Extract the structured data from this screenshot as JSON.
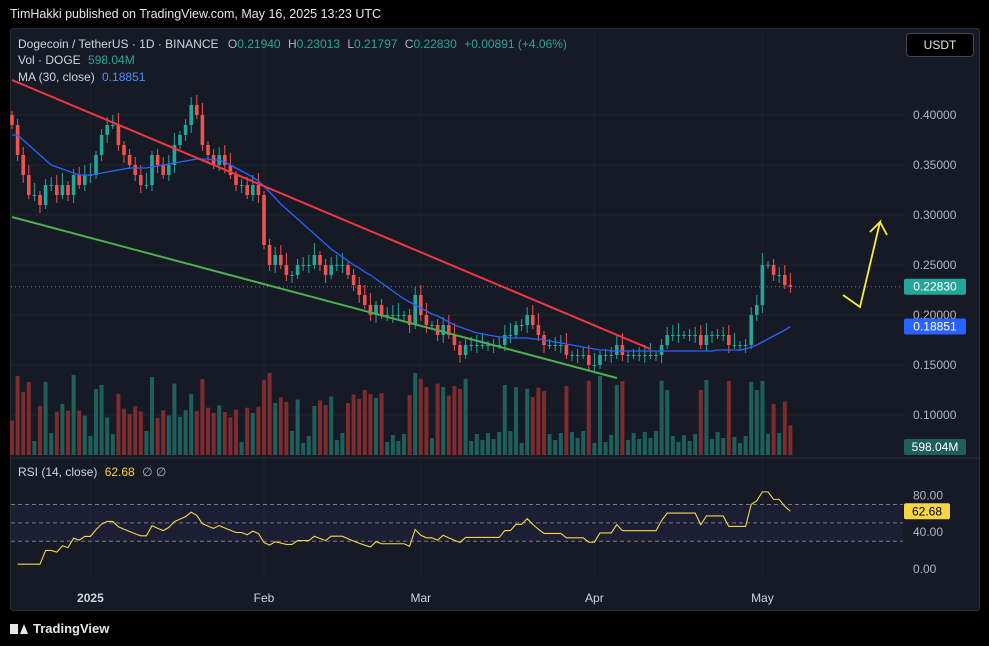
{
  "header": {
    "publisher": "TimHakki published on TradingView.com, May 16, 2025 13:23 UTC"
  },
  "legend": {
    "title": "Dogecoin / TetherUS · 1D · BINANCE",
    "o_label": "O",
    "o_value": "0.21940",
    "h_label": "H",
    "h_value": "0.23013",
    "l_label": "L",
    "l_value": "0.21797",
    "c_label": "C",
    "c_value": "0.22830",
    "change": "+0.00891 (+4.06%)",
    "vol_label": "Vol · DOGE",
    "vol_value": "598.04M",
    "ma_label": "MA (30, close)",
    "ma_value": "0.18851",
    "rsi_label": "RSI (14, close)",
    "rsi_value": "62.68",
    "rsi_glyphs": "∅ ∅"
  },
  "currency_button": "USDT",
  "footer": {
    "brand": "TradingView"
  },
  "colors": {
    "up": "#26a69a",
    "down": "#ef5350",
    "ma": "#2962ff",
    "rsi": "#f7d547",
    "resistance": "#f23645",
    "support": "#4caf50",
    "arrow": "#ffeb3b"
  },
  "chart_data": {
    "type": "candlestick",
    "symbol": "DOGEUSDT",
    "interval": "1D",
    "price_axis": {
      "ticks": [
        "0.40000",
        "0.35000",
        "0.30000",
        "0.25000",
        "0.20000",
        "0.15000",
        "0.10000"
      ],
      "values": [
        0.4,
        0.35,
        0.3,
        0.25,
        0.2,
        0.15,
        0.1
      ],
      "ylim": [
        0.06,
        0.455
      ]
    },
    "time_axis": {
      "ticks": [
        "2025",
        "Feb",
        "Mar",
        "Apr",
        "May"
      ],
      "day_index": [
        14,
        45,
        73,
        104,
        134
      ]
    },
    "last_price": {
      "value": 0.2283,
      "label": "0.22830"
    },
    "ma_last": {
      "value": 0.18851,
      "label": "0.18851"
    },
    "vol_last": {
      "label": "598.04M"
    },
    "closes": [
      0.39,
      0.36,
      0.34,
      0.32,
      0.32,
      0.31,
      0.33,
      0.33,
      0.32,
      0.33,
      0.32,
      0.34,
      0.33,
      0.34,
      0.34,
      0.36,
      0.38,
      0.39,
      0.39,
      0.37,
      0.36,
      0.35,
      0.34,
      0.33,
      0.33,
      0.36,
      0.35,
      0.34,
      0.35,
      0.37,
      0.38,
      0.39,
      0.41,
      0.4,
      0.37,
      0.36,
      0.35,
      0.36,
      0.35,
      0.34,
      0.33,
      0.33,
      0.32,
      0.33,
      0.32,
      0.27,
      0.25,
      0.26,
      0.25,
      0.24,
      0.24,
      0.25,
      0.25,
      0.25,
      0.26,
      0.25,
      0.24,
      0.25,
      0.25,
      0.25,
      0.24,
      0.23,
      0.22,
      0.21,
      0.2,
      0.21,
      0.2,
      0.2,
      0.2,
      0.2,
      0.2,
      0.19,
      0.22,
      0.2,
      0.19,
      0.19,
      0.18,
      0.19,
      0.18,
      0.17,
      0.16,
      0.17,
      0.17,
      0.17,
      0.17,
      0.17,
      0.17,
      0.17,
      0.18,
      0.18,
      0.19,
      0.19,
      0.2,
      0.19,
      0.18,
      0.17,
      0.17,
      0.17,
      0.17,
      0.16,
      0.16,
      0.16,
      0.16,
      0.15,
      0.15,
      0.16,
      0.16,
      0.16,
      0.17,
      0.16,
      0.16,
      0.16,
      0.16,
      0.16,
      0.16,
      0.16,
      0.17,
      0.18,
      0.18,
      0.18,
      0.18,
      0.18,
      0.18,
      0.17,
      0.18,
      0.18,
      0.18,
      0.18,
      0.17,
      0.17,
      0.17,
      0.17,
      0.2,
      0.21,
      0.25,
      0.25,
      0.24,
      0.24,
      0.23,
      0.2283
    ],
    "ma30": [
      0.38,
      0.38,
      0.375,
      0.37,
      0.365,
      0.36,
      0.355,
      0.35,
      0.348,
      0.346,
      0.344,
      0.342,
      0.34,
      0.34,
      0.34,
      0.341,
      0.342,
      0.343,
      0.344,
      0.345,
      0.346,
      0.347,
      0.347,
      0.347,
      0.347,
      0.348,
      0.349,
      0.35,
      0.351,
      0.352,
      0.353,
      0.354,
      0.355,
      0.356,
      0.356,
      0.356,
      0.355,
      0.355,
      0.353,
      0.35,
      0.347,
      0.344,
      0.341,
      0.338,
      0.334,
      0.329,
      0.323,
      0.317,
      0.311,
      0.306,
      0.301,
      0.296,
      0.291,
      0.286,
      0.281,
      0.276,
      0.271,
      0.266,
      0.262,
      0.258,
      0.254,
      0.25,
      0.247,
      0.243,
      0.24,
      0.236,
      0.232,
      0.228,
      0.224,
      0.22,
      0.216,
      0.213,
      0.21,
      0.207,
      0.204,
      0.201,
      0.199,
      0.196,
      0.193,
      0.19,
      0.188,
      0.186,
      0.184,
      0.182,
      0.181,
      0.18,
      0.179,
      0.178,
      0.178,
      0.177,
      0.177,
      0.177,
      0.177,
      0.176,
      0.176,
      0.175,
      0.174,
      0.173,
      0.172,
      0.171,
      0.17,
      0.169,
      0.168,
      0.167,
      0.166,
      0.165,
      0.165,
      0.164,
      0.164,
      0.164,
      0.164,
      0.164,
      0.164,
      0.164,
      0.164,
      0.164,
      0.164,
      0.164,
      0.164,
      0.164,
      0.164,
      0.164,
      0.164,
      0.164,
      0.164,
      0.164,
      0.165,
      0.165,
      0.165,
      0.165,
      0.165,
      0.166,
      0.168,
      0.17,
      0.173,
      0.176,
      0.179,
      0.182,
      0.185,
      0.18851
    ],
    "rsi": {
      "value": 62.68,
      "levels": [
        70,
        50,
        30
      ],
      "ticks": [
        "80.00",
        "40.00",
        "0.00"
      ],
      "tick_values": [
        80,
        40,
        0
      ],
      "ylim": [
        -10,
        100
      ]
    }
  }
}
